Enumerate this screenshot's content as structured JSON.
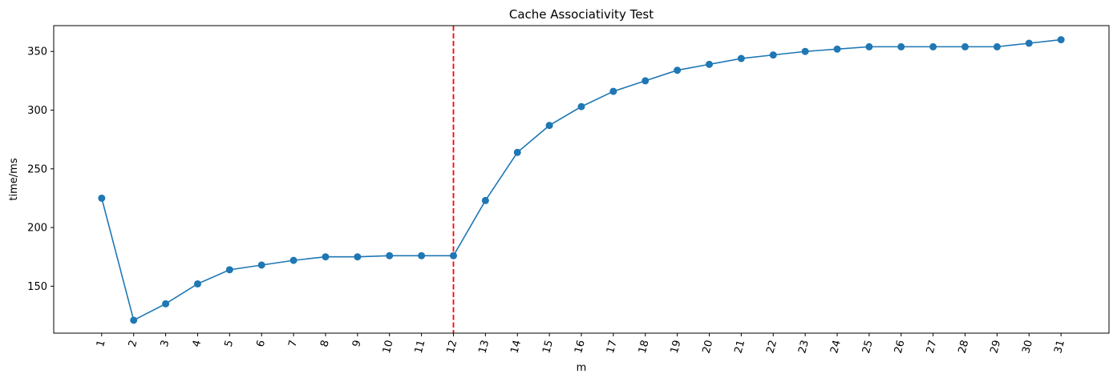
{
  "chart_data": {
    "type": "line",
    "title": "Cache Associativity Test",
    "xlabel": "m",
    "ylabel": "time/ms",
    "x": [
      1,
      2,
      3,
      4,
      5,
      6,
      7,
      8,
      9,
      10,
      11,
      12,
      13,
      14,
      15,
      16,
      17,
      18,
      19,
      20,
      21,
      22,
      23,
      24,
      25,
      26,
      27,
      28,
      29,
      30,
      31
    ],
    "x_tick_labels": [
      "1",
      "2",
      "3",
      "4",
      "5",
      "6",
      "7",
      "8",
      "9",
      "10",
      "11",
      "12",
      "13",
      "14",
      "15",
      "16",
      "17",
      "18",
      "19",
      "20",
      "21",
      "22",
      "23",
      "24",
      "25",
      "26",
      "27",
      "28",
      "29",
      "30",
      "31"
    ],
    "series": [
      {
        "values": [
          225,
          121,
          135,
          152,
          164,
          168,
          172,
          175,
          175,
          176,
          176,
          176,
          223,
          264,
          287,
          303,
          316,
          325,
          334,
          339,
          344,
          347,
          350,
          352,
          354,
          354,
          354,
          354,
          354,
          357,
          360
        ],
        "color": "#1f77b4",
        "marker": "circle"
      }
    ],
    "ylim": [
      110,
      372
    ],
    "xlim": [
      -0.5,
      32.5
    ],
    "y_ticks": [
      150,
      200,
      250,
      300,
      350
    ],
    "y_tick_labels": [
      "150",
      "200",
      "250",
      "300",
      "350"
    ],
    "vline": {
      "x": 12,
      "color": "#ff0000",
      "style": "dashed"
    },
    "grid": false,
    "legend": "none"
  }
}
